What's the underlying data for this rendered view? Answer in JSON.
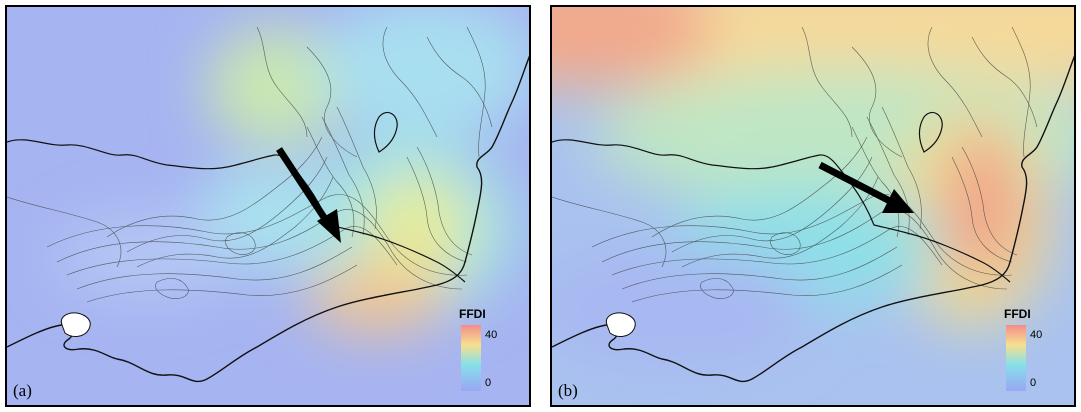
{
  "panels": [
    {
      "label": "(a)",
      "legend": {
        "title": "FFDI",
        "max_label": "40",
        "min_label": "0"
      }
    },
    {
      "label": "(b)",
      "legend": {
        "title": "FFDI",
        "max_label": "40",
        "min_label": "0"
      }
    }
  ],
  "colors": {
    "low": "#a4b2f2",
    "mid_low": "#8fd8f0",
    "mid": "#f3ee8c",
    "high": "#f3a08a",
    "land_outline": "#111111",
    "arrow": "#000000"
  }
}
